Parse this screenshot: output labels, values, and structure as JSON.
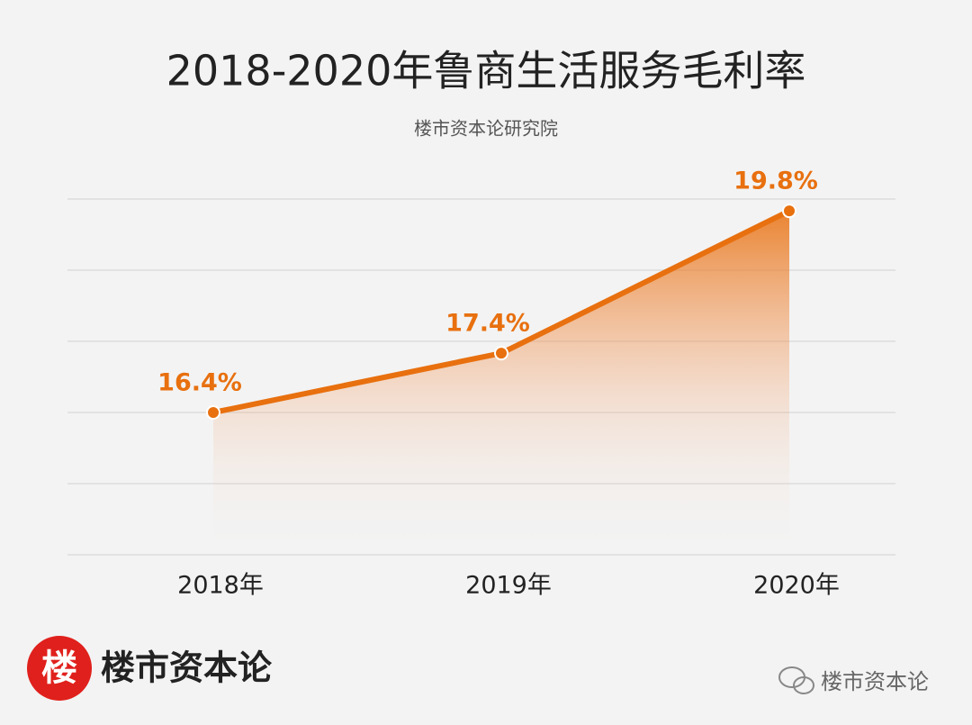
{
  "chart_data": {
    "type": "area-line",
    "title": "2018-2020年鲁商生活服务毛利率",
    "subtitle": "楼市资本论研究院",
    "categories": [
      "2018年",
      "2019年",
      "2020年"
    ],
    "values": [
      16.4,
      17.4,
      19.8
    ],
    "value_labels": [
      "16.4%",
      "17.4%",
      "19.8%"
    ],
    "color": "#e8700f",
    "ylim": [
      14,
      20
    ],
    "yticks": [
      14,
      15.2,
      16.4,
      17.6,
      18.8,
      20
    ],
    "grid": true
  },
  "branding": {
    "logo_char": "楼",
    "name": "楼市资本论",
    "watermark": "楼市资本论"
  }
}
